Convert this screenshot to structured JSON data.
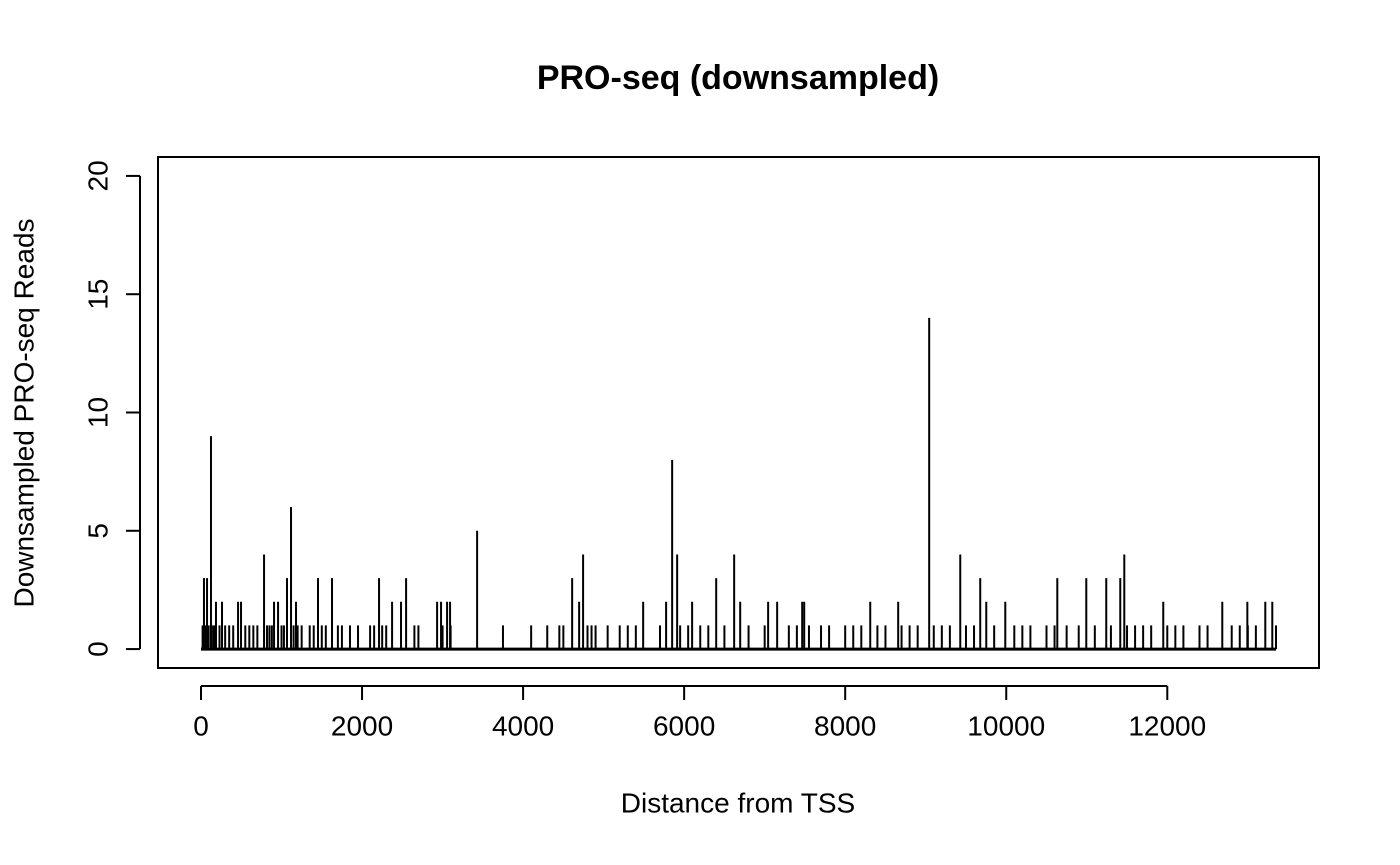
{
  "chart_data": {
    "type": "spike",
    "title": "PRO-seq (downsampled)",
    "xlabel": "Distance from TSS",
    "ylabel": "Downsampled PRO-seq Reads",
    "color": "#000000",
    "xlim": [
      -534,
      13884
    ],
    "ylim": [
      -0.8,
      20.8
    ],
    "xticks": [
      0,
      2000,
      4000,
      6000,
      8000,
      10000,
      12000
    ],
    "yticks": [
      0,
      5,
      10,
      15,
      20
    ],
    "x": [
      0,
      37,
      75,
      124,
      783,
      1118,
      1068,
      1453,
      1627,
      2211,
      2547,
      3429,
      4609,
      4745,
      5851,
      5913,
      6398,
      6621,
      9043,
      9429,
      9677,
      10634,
      10994,
      11242,
      11416,
      11466,
      186,
      261,
      460,
      497,
      907,
      957,
      1180,
      2373,
      2484,
      2932,
      2981,
      3056,
      3093,
      4696,
      5491,
      5776,
      6099,
      6696,
      7043,
      7155,
      7466,
      7491,
      8311,
      8658,
      9752,
      9988,
      11950,
      12683,
      12994,
      13217,
      13304,
      20,
      55,
      95,
      150,
      170,
      230,
      300,
      350,
      400,
      550,
      600,
      650,
      700,
      820,
      850,
      880,
      1000,
      1030,
      1150,
      1200,
      1250,
      1350,
      1400,
      1500,
      1550,
      1700,
      1750,
      1850,
      1950,
      2100,
      2150,
      2250,
      2300,
      2650,
      2700,
      3000,
      3100,
      3750,
      4100,
      4300,
      4450,
      4500,
      4800,
      4850,
      4900,
      5050,
      5200,
      5300,
      5400,
      5700,
      5950,
      6050,
      6200,
      6300,
      6500,
      6800,
      7000,
      7300,
      7400,
      7550,
      7700,
      7800,
      8000,
      8100,
      8200,
      8400,
      8500,
      8700,
      8800,
      8900,
      9100,
      9200,
      9300,
      9500,
      9600,
      9850,
      10100,
      10200,
      10300,
      10500,
      10600,
      10750,
      10900,
      11100,
      11300,
      11500,
      11600,
      11700,
      11800,
      12000,
      12100,
      12200,
      12400,
      12500,
      12800,
      12900,
      13000,
      13100,
      13350
    ],
    "values": [
      0,
      3,
      3,
      9,
      4,
      6,
      3,
      3,
      3,
      3,
      3,
      5,
      3,
      4,
      8,
      4,
      3,
      4,
      14,
      4,
      3,
      3,
      3,
      3,
      3,
      4,
      2,
      2,
      2,
      2,
      2,
      2,
      2,
      2,
      2,
      2,
      2,
      2,
      2,
      2,
      2,
      2,
      2,
      2,
      2,
      2,
      2,
      2,
      2,
      2,
      2,
      2,
      2,
      2,
      2,
      2,
      2,
      1,
      1,
      1,
      1,
      1,
      1,
      1,
      1,
      1,
      1,
      1,
      1,
      1,
      1,
      1,
      1,
      1,
      1,
      1,
      1,
      1,
      1,
      1,
      1,
      1,
      1,
      1,
      1,
      1,
      1,
      1,
      1,
      1,
      1,
      1,
      1,
      1,
      1,
      1,
      1,
      1,
      1,
      1,
      1,
      1,
      1,
      1,
      1,
      1,
      1,
      1,
      1,
      1,
      1,
      1,
      1,
      1,
      1,
      1,
      1,
      1,
      1,
      1,
      1,
      1,
      1,
      1,
      1,
      1,
      1,
      1,
      1,
      1,
      1,
      1,
      1,
      1,
      1,
      1,
      1,
      1,
      1,
      1,
      1,
      1,
      1,
      1,
      1,
      1,
      1,
      1,
      1,
      1,
      1,
      1,
      1,
      1,
      1,
      1
    ]
  }
}
